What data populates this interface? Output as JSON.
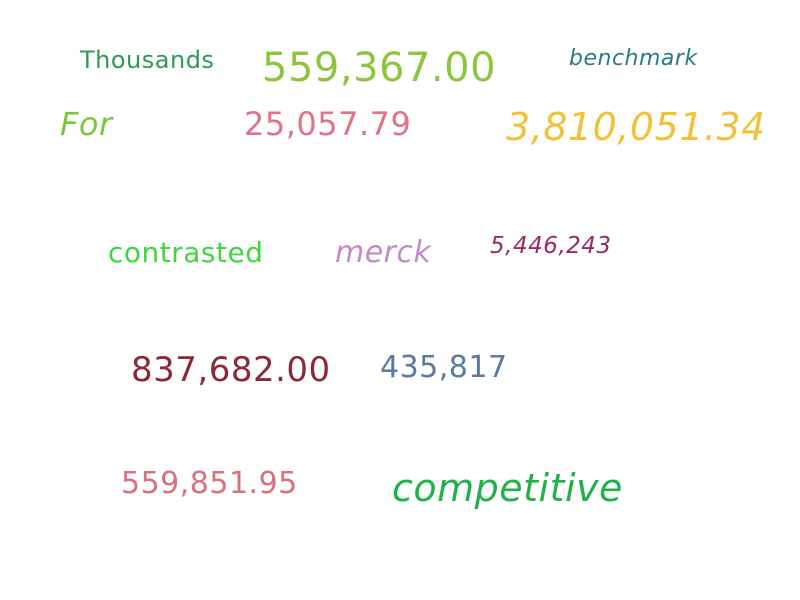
{
  "words": {
    "thousands": {
      "text": "Thousands",
      "color": "#2e9a55"
    },
    "n559367": {
      "text": "559,367.00",
      "color": "#8cc63f"
    },
    "benchmark": {
      "text": "benchmark",
      "color": "#2b7a8a"
    },
    "for": {
      "text": "For",
      "color": "#7cc63f"
    },
    "n25057": {
      "text": "25,057.79",
      "color": "#e0728a"
    },
    "n3810051": {
      "text": "3,810,051.34",
      "color": "#f0c23a"
    },
    "contrasted": {
      "text": "contrasted",
      "color": "#3fd63f"
    },
    "merck": {
      "text": "merck",
      "color": "#c48ac8"
    },
    "n5446243": {
      "text": "5,446,243",
      "color": "#9a2a6a"
    },
    "n837682": {
      "text": "837,682.00",
      "color": "#8a2a35"
    },
    "n435817": {
      "text": "435,817",
      "color": "#5a7aa0"
    },
    "n559851": {
      "text": "559,851.95",
      "color": "#d8707e"
    },
    "competitive": {
      "text": "competitive",
      "color": "#22b04a"
    }
  }
}
